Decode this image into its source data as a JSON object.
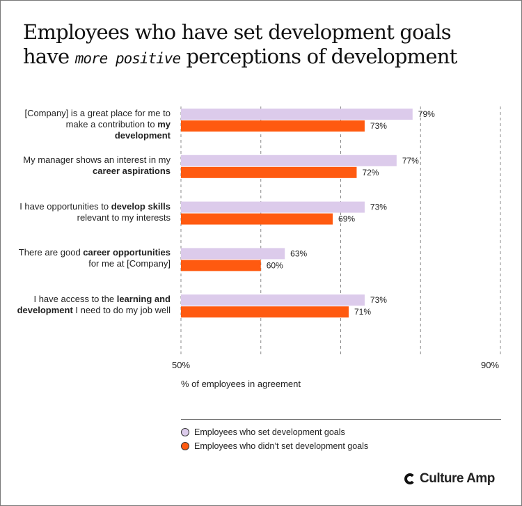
{
  "title": {
    "line1": "Employees who have set development goals",
    "line2_pre": "have",
    "line2_hand": "more positive",
    "line2_post": "perceptions of development"
  },
  "chart_data": {
    "type": "bar",
    "orientation": "horizontal",
    "categories": [
      [
        {
          "t": "[Company] is a great place for me to make a contribution to ",
          "b": false
        },
        {
          "t": "my development",
          "b": true
        }
      ],
      [
        {
          "t": "My manager shows an interest in my ",
          "b": false
        },
        {
          "t": "career aspirations",
          "b": true
        }
      ],
      [
        {
          "t": "I have opportunities to ",
          "b": false
        },
        {
          "t": "develop skills",
          "b": true
        },
        {
          "t": " relevant to my interests",
          "b": false
        }
      ],
      [
        {
          "t": "There are good ",
          "b": false
        },
        {
          "t": "career opportunities",
          "b": true
        },
        {
          "t": " for me at [Company]",
          "b": false
        }
      ],
      [
        {
          "t": "I have access to the ",
          "b": false
        },
        {
          "t": "learning and development",
          "b": true
        },
        {
          "t": " I need to do my job well",
          "b": false
        }
      ]
    ],
    "series": [
      {
        "name": "Employees who set development goals",
        "color": "#dccbeb",
        "values": [
          79,
          77,
          73,
          63,
          73
        ],
        "labels": [
          "79%",
          "77%",
          "73%",
          "63%",
          "73%"
        ]
      },
      {
        "name": "Employees who didn’t set development goals",
        "color": "#ff5a10",
        "values": [
          73,
          72,
          69,
          60,
          71
        ],
        "labels": [
          "73%",
          "72%",
          "69%",
          "60%",
          "71%"
        ]
      }
    ],
    "xlim": [
      50,
      90
    ],
    "gridlines": [
      50,
      60,
      70,
      80,
      90
    ],
    "tick_labels": {
      "min": "50%",
      "max": "90%"
    },
    "xlabel": "% of employees in agreement",
    "grid": true,
    "legend": "bottom"
  },
  "brand": "Culture Amp"
}
